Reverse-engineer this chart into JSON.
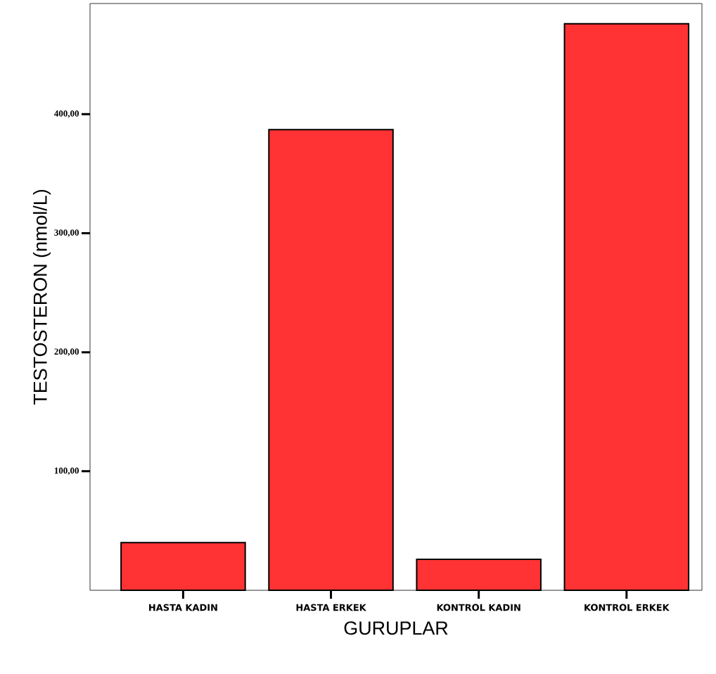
{
  "chart_data": {
    "type": "bar",
    "xlabel": "GURUPLAR",
    "ylabel": "TESTOSTERON (nmol/L)",
    "categories": [
      "HASTA KADIN",
      "HASTA ERKEK",
      "KONTROL KADIN",
      "KONTROL ERKEK"
    ],
    "values": [
      40,
      387,
      26,
      476
    ],
    "color": "#ff3333",
    "ylim": [
      0,
      493
    ],
    "yticks": [
      {
        "value": 100,
        "label": "100,00"
      },
      {
        "value": 200,
        "label": "200,00"
      },
      {
        "value": 300,
        "label": "300,00"
      },
      {
        "value": 400,
        "label": "400,00"
      }
    ]
  }
}
